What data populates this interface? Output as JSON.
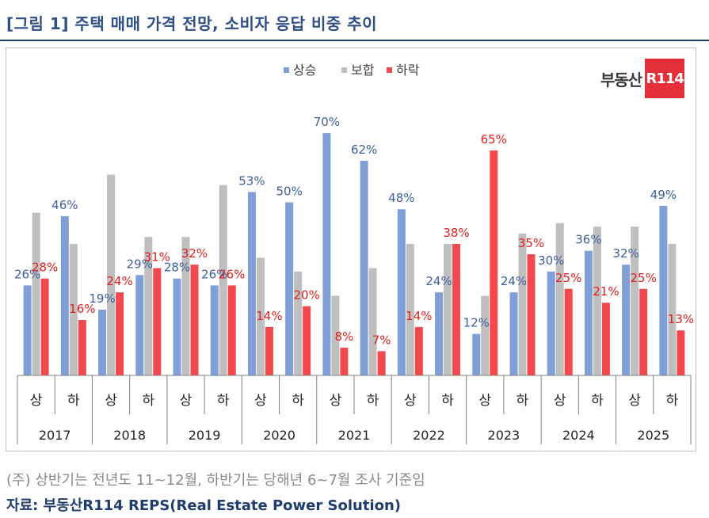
{
  "header": {
    "title": "[그림 1] 주택 매매 가격 전망, 소비자 응답 비중 추이"
  },
  "brand": {
    "text": "부동산",
    "box": "R114"
  },
  "footer": {
    "note": "(주) 상반기는 전년도 11~12월, 하반기는 당해년 6~7월 조사 기준임",
    "source": "자료: 부동산R114 REPS(Real Estate Power Solution)"
  },
  "chart_data": {
    "type": "bar",
    "title": "",
    "xlabel": "",
    "ylabel": "",
    "ylim": [
      0,
      80
    ],
    "grid": false,
    "legend_position": "top-center",
    "years": [
      "2017",
      "2018",
      "2019",
      "2020",
      "2021",
      "2022",
      "2023",
      "2024",
      "2025"
    ],
    "halves": [
      "상",
      "하"
    ],
    "categories": [
      "2017 상",
      "2017 하",
      "2018 상",
      "2018 하",
      "2019 상",
      "2019 하",
      "2020 상",
      "2020 하",
      "2021 상",
      "2021 하",
      "2022 상",
      "2022 하",
      "2023 상",
      "2023 하",
      "2024 상",
      "2024 하",
      "2025 상",
      "2025 하"
    ],
    "series": [
      {
        "name": "상승",
        "color": "#7f9fd6",
        "label_color": "#3d5f9c",
        "labeled": true,
        "values": [
          26,
          46,
          19,
          29,
          28,
          26,
          53,
          50,
          70,
          62,
          48,
          24,
          12,
          24,
          30,
          36,
          32,
          49
        ]
      },
      {
        "name": "보합",
        "color": "#bfbfbf",
        "label_color": "#808080",
        "labeled": false,
        "values": [
          47,
          38,
          58,
          40,
          40,
          55,
          34,
          30,
          23,
          31,
          38,
          38,
          23,
          41,
          44,
          43,
          43,
          38
        ]
      },
      {
        "name": "하락",
        "color": "#f2484e",
        "label_color": "#e02020",
        "labeled": true,
        "values": [
          28,
          16,
          24,
          31,
          32,
          26,
          14,
          20,
          8,
          7,
          14,
          38,
          65,
          35,
          25,
          21,
          25,
          13
        ]
      }
    ]
  }
}
